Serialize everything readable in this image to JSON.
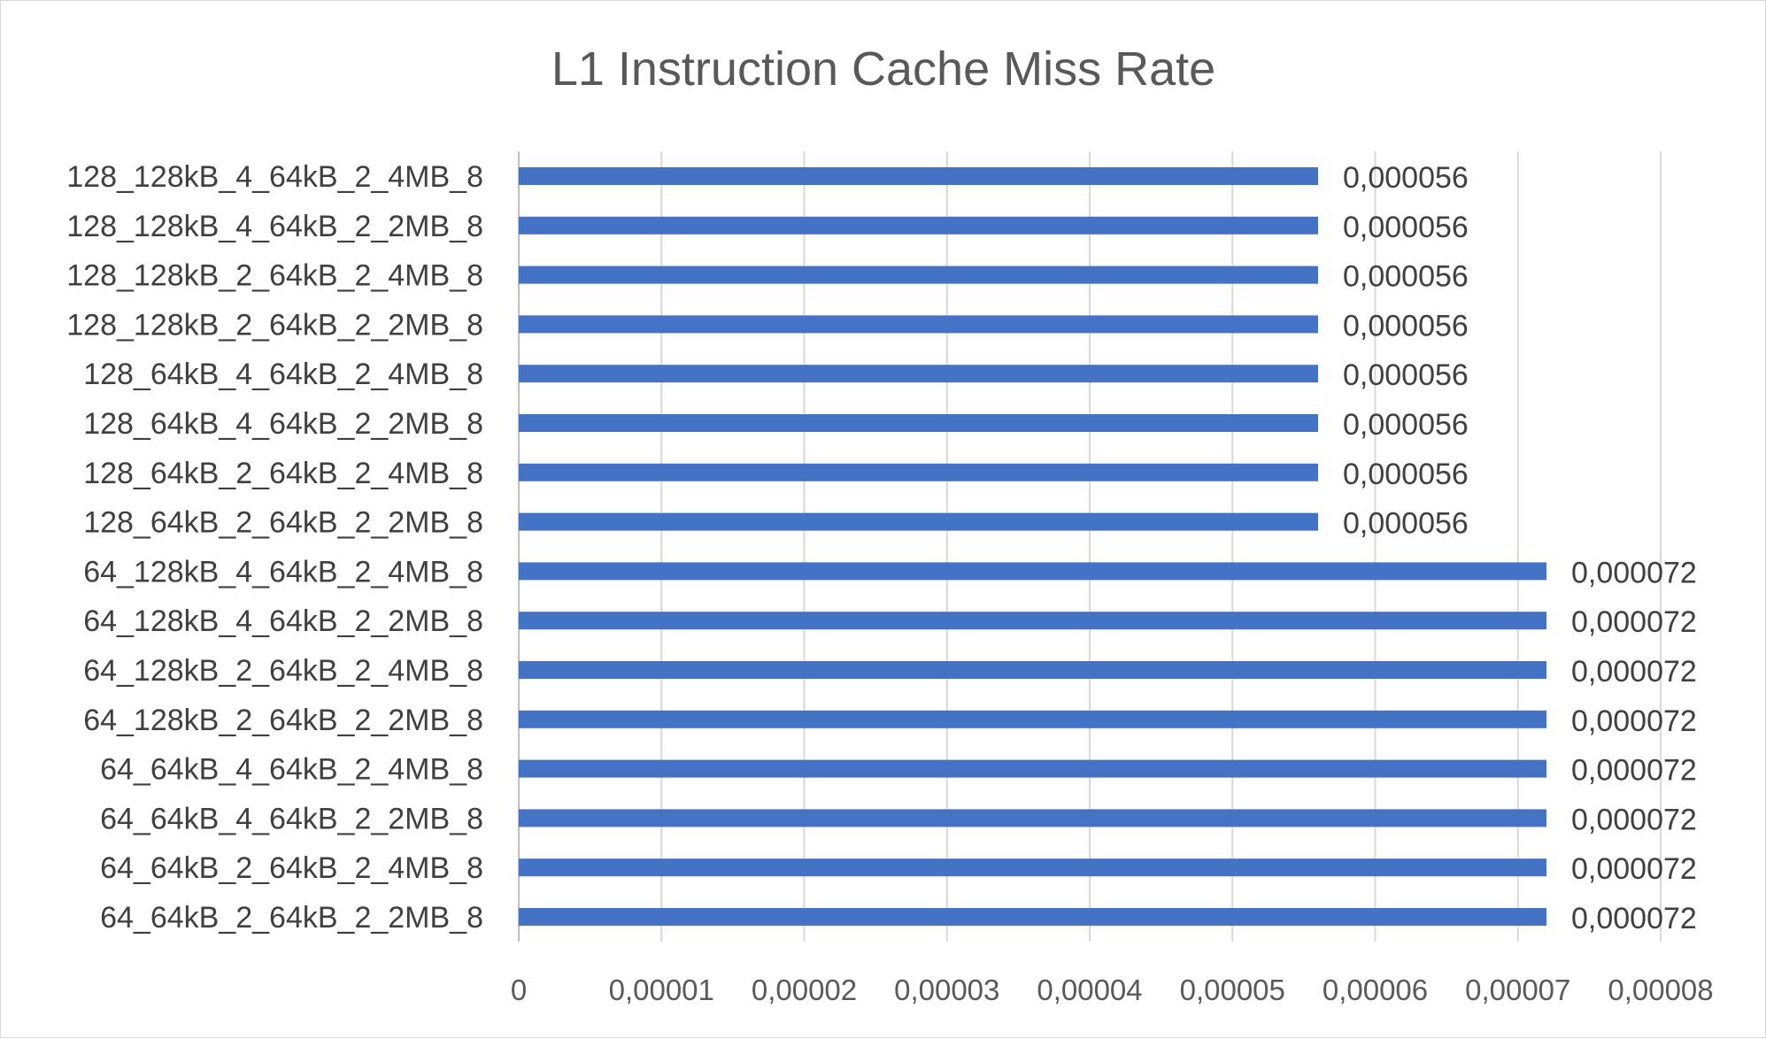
{
  "chart_data": {
    "type": "bar",
    "orientation": "horizontal",
    "title": "L1 Instruction Cache Miss Rate",
    "xlabel": "",
    "ylabel": "",
    "xlim": [
      0,
      8e-05
    ],
    "grid": true,
    "legend": "none",
    "bar_color": "#4472C4",
    "categories": [
      "128_128kB_4_64kB_2_4MB_8",
      "128_128kB_4_64kB_2_2MB_8",
      "128_128kB_2_64kB_2_4MB_8",
      "128_128kB_2_64kB_2_2MB_8",
      "128_64kB_4_64kB_2_4MB_8",
      "128_64kB_4_64kB_2_2MB_8",
      "128_64kB_2_64kB_2_4MB_8",
      "128_64kB_2_64kB_2_2MB_8",
      "64_128kB_4_64kB_2_4MB_8",
      "64_128kB_4_64kB_2_2MB_8",
      "64_128kB_2_64kB_2_4MB_8",
      "64_128kB_2_64kB_2_2MB_8",
      "64_64kB_4_64kB_2_4MB_8",
      "64_64kB_4_64kB_2_2MB_8",
      "64_64kB_2_64kB_2_4MB_8",
      "64_64kB_2_64kB_2_2MB_8"
    ],
    "values": [
      5.6e-05,
      5.6e-05,
      5.6e-05,
      5.6e-05,
      5.6e-05,
      5.6e-05,
      5.6e-05,
      5.6e-05,
      7.2e-05,
      7.2e-05,
      7.2e-05,
      7.2e-05,
      7.2e-05,
      7.2e-05,
      7.2e-05,
      7.2e-05
    ],
    "data_labels": [
      "0,000056",
      "0,000056",
      "0,000056",
      "0,000056",
      "0,000056",
      "0,000056",
      "0,000056",
      "0,000056",
      "0,000072",
      "0,000072",
      "0,000072",
      "0,000072",
      "0,000072",
      "0,000072",
      "0,000072",
      "0,000072"
    ],
    "ticks": [
      0,
      1e-05,
      2e-05,
      3e-05,
      4e-05,
      5e-05,
      6e-05,
      7e-05,
      8e-05
    ],
    "tick_labels": [
      "0",
      "0,00001",
      "0,00002",
      "0,00003",
      "0,00004",
      "0,00005",
      "0,00006",
      "0,00007",
      "0,00008"
    ]
  }
}
